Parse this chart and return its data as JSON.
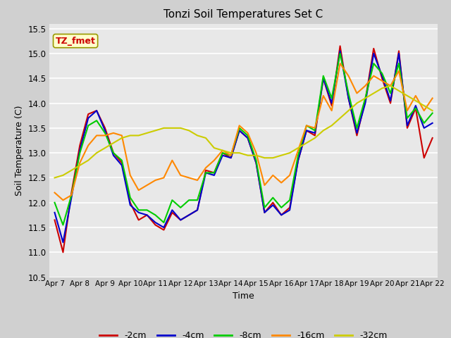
{
  "title": "Tonzi Soil Temperatures Set C",
  "xlabel": "Time",
  "ylabel": "Soil Temperature (C)",
  "ylim": [
    10.5,
    15.6
  ],
  "ytick_values": [
    10.5,
    11.0,
    11.5,
    12.0,
    12.5,
    13.0,
    13.5,
    14.0,
    14.5,
    15.0,
    15.5
  ],
  "xtick_labels": [
    "Apr 7",
    "Apr 8",
    "Apr 9",
    "Apr 10",
    "Apr 11",
    "Apr 12",
    "Apr 13",
    "Apr 14",
    "Apr 15",
    "Apr 16",
    "Apr 17",
    "Apr 18",
    "Apr 19",
    "Apr 20",
    "Apr 21",
    "Apr 22"
  ],
  "fig_bg_color": "#d0d0d0",
  "plot_bg_color": "#e8e8e8",
  "grid_color": "#ffffff",
  "series": [
    {
      "label": "-2cm",
      "color": "#cc0000",
      "linewidth": 1.5,
      "data": [
        11.65,
        11.0,
        12.2,
        13.15,
        13.78,
        13.85,
        13.5,
        13.0,
        12.8,
        12.0,
        11.65,
        11.75,
        11.55,
        11.45,
        11.8,
        11.65,
        11.75,
        11.85,
        12.65,
        12.6,
        13.0,
        12.9,
        13.45,
        13.3,
        12.8,
        11.8,
        12.0,
        11.75,
        11.9,
        12.85,
        13.45,
        13.35,
        14.5,
        13.95,
        15.15,
        14.1,
        13.35,
        14.05,
        15.1,
        14.5,
        14.0,
        15.05,
        13.5,
        13.9,
        12.9,
        13.3
      ]
    },
    {
      "label": "-4cm",
      "color": "#0000cc",
      "linewidth": 1.5,
      "data": [
        11.8,
        11.2,
        12.1,
        13.05,
        13.7,
        13.85,
        13.45,
        12.95,
        12.75,
        11.95,
        11.8,
        11.75,
        11.6,
        11.5,
        11.85,
        11.65,
        11.75,
        11.85,
        12.6,
        12.55,
        12.95,
        12.9,
        13.45,
        13.3,
        12.8,
        11.8,
        11.95,
        11.75,
        11.85,
        12.85,
        13.45,
        13.4,
        14.5,
        14.0,
        15.05,
        14.1,
        13.4,
        14.0,
        15.0,
        14.55,
        14.05,
        15.0,
        13.55,
        13.95,
        13.5,
        13.6
      ]
    },
    {
      "label": "-8cm",
      "color": "#00cc00",
      "linewidth": 1.5,
      "data": [
        12.0,
        11.55,
        12.15,
        13.0,
        13.55,
        13.65,
        13.4,
        13.0,
        12.85,
        12.1,
        11.85,
        11.85,
        11.75,
        11.6,
        12.05,
        11.9,
        12.05,
        12.05,
        12.6,
        12.6,
        13.0,
        12.95,
        13.5,
        13.35,
        12.85,
        11.9,
        12.1,
        11.9,
        12.05,
        12.95,
        13.55,
        13.45,
        14.55,
        14.1,
        15.0,
        14.2,
        13.5,
        14.1,
        14.8,
        14.6,
        14.2,
        14.8,
        13.7,
        13.9,
        13.6,
        13.8
      ]
    },
    {
      "label": "-16cm",
      "color": "#ff8800",
      "linewidth": 1.5,
      "data": [
        12.2,
        12.05,
        12.15,
        12.8,
        13.15,
        13.35,
        13.35,
        13.4,
        13.35,
        12.55,
        12.25,
        12.35,
        12.45,
        12.5,
        12.85,
        12.55,
        12.5,
        12.45,
        12.7,
        12.85,
        13.05,
        12.95,
        13.55,
        13.4,
        13.0,
        12.35,
        12.55,
        12.4,
        12.55,
        13.05,
        13.55,
        13.5,
        14.15,
        13.85,
        14.8,
        14.55,
        14.2,
        14.35,
        14.55,
        14.45,
        14.35,
        14.65,
        13.85,
        14.15,
        13.85,
        14.1
      ]
    },
    {
      "label": "-32cm",
      "color": "#cccc00",
      "linewidth": 1.5,
      "data": [
        12.5,
        12.55,
        12.65,
        12.75,
        12.85,
        13.0,
        13.1,
        13.2,
        13.3,
        13.35,
        13.35,
        13.4,
        13.45,
        13.5,
        13.5,
        13.5,
        13.45,
        13.35,
        13.3,
        13.1,
        13.05,
        13.0,
        13.0,
        12.95,
        12.95,
        12.9,
        12.9,
        12.95,
        13.0,
        13.1,
        13.2,
        13.3,
        13.45,
        13.55,
        13.7,
        13.85,
        14.0,
        14.1,
        14.2,
        14.3,
        14.35,
        14.25,
        14.15,
        14.05,
        13.95,
        13.85
      ]
    }
  ],
  "annotation_text": "TZ_fmet",
  "annotation_color": "#cc0000",
  "annotation_bg": "#ffffcc",
  "annotation_border": "#999900"
}
